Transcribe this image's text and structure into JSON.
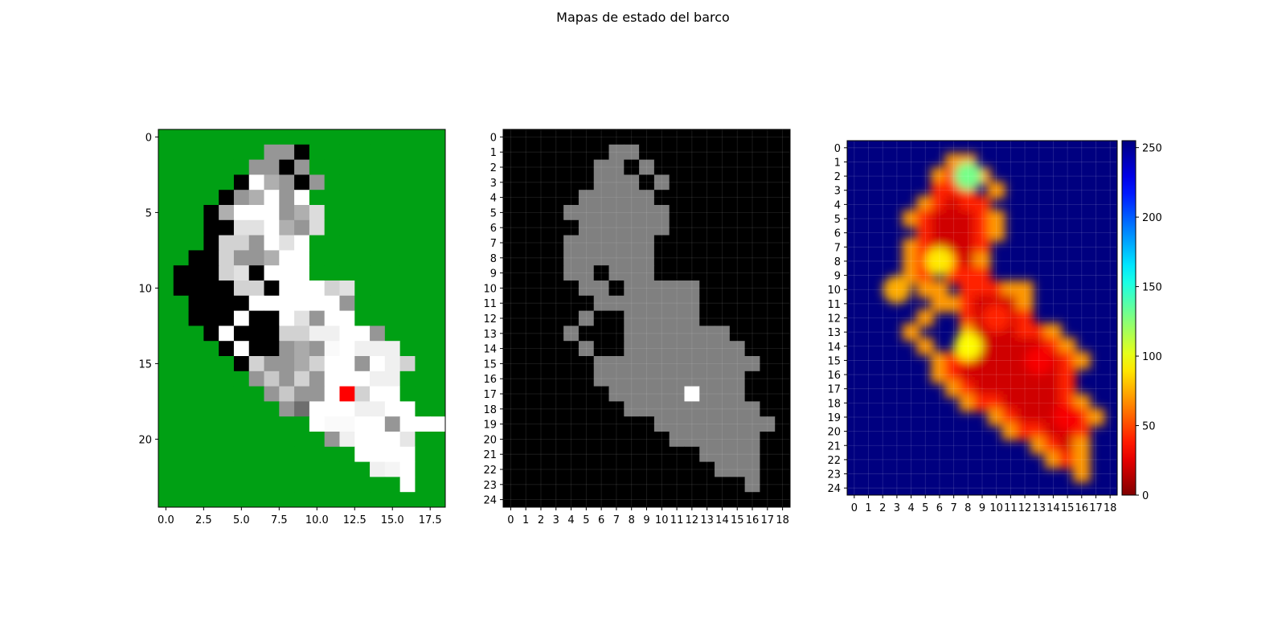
{
  "title": "Mapas de estado del barco",
  "chart_data": [
    {
      "type": "heatmap",
      "panel": "estado",
      "title": "",
      "xlabel": "",
      "ylabel": "",
      "rows": 25,
      "cols": 19,
      "xlim": [
        -0.5,
        18.5
      ],
      "ylim": [
        24.5,
        -0.5
      ],
      "x_ticks": [
        0.0,
        2.5,
        5.0,
        7.5,
        10.0,
        12.5,
        15.0,
        17.5
      ],
      "x_tick_labels": [
        "0.0",
        "2.5",
        "5.0",
        "7.5",
        "10.0",
        "12.5",
        "15.0",
        "17.5"
      ],
      "y_ticks": [
        0,
        5,
        10,
        15,
        20
      ],
      "y_tick_labels": [
        "0",
        "5",
        "10",
        "15",
        "20"
      ],
      "background_color": "#00a014",
      "highlight_color": "#ff0000",
      "highlight_cell": [
        17,
        12
      ],
      "grid_note": "cell values are gray levels 0-255; -1 means background (green)",
      "values": [
        [
          -1,
          -1,
          -1,
          -1,
          -1,
          -1,
          -1,
          -1,
          -1,
          -1,
          -1,
          -1,
          -1,
          -1,
          -1,
          -1,
          -1,
          -1,
          -1
        ],
        [
          -1,
          -1,
          -1,
          -1,
          -1,
          -1,
          -1,
          150,
          150,
          0,
          -1,
          -1,
          -1,
          -1,
          -1,
          -1,
          -1,
          -1,
          -1
        ],
        [
          -1,
          -1,
          -1,
          -1,
          -1,
          -1,
          150,
          150,
          0,
          150,
          -1,
          -1,
          -1,
          -1,
          -1,
          -1,
          -1,
          -1,
          -1
        ],
        [
          -1,
          -1,
          -1,
          -1,
          -1,
          0,
          255,
          175,
          150,
          0,
          150,
          -1,
          -1,
          -1,
          -1,
          -1,
          -1,
          -1,
          -1
        ],
        [
          -1,
          -1,
          -1,
          -1,
          0,
          150,
          175,
          255,
          150,
          255,
          -1,
          -1,
          -1,
          -1,
          -1,
          -1,
          -1,
          -1,
          -1
        ],
        [
          -1,
          -1,
          -1,
          0,
          175,
          255,
          255,
          255,
          150,
          175,
          220,
          -1,
          -1,
          -1,
          -1,
          -1,
          -1,
          -1,
          -1
        ],
        [
          -1,
          -1,
          -1,
          0,
          0,
          225,
          225,
          255,
          175,
          150,
          220,
          -1,
          -1,
          -1,
          -1,
          -1,
          -1,
          -1,
          -1
        ],
        [
          -1,
          -1,
          -1,
          0,
          210,
          210,
          150,
          255,
          225,
          255,
          -1,
          -1,
          -1,
          -1,
          -1,
          -1,
          -1,
          -1,
          -1
        ],
        [
          -1,
          -1,
          0,
          0,
          210,
          150,
          150,
          175,
          255,
          255,
          -1,
          -1,
          -1,
          -1,
          -1,
          -1,
          -1,
          -1,
          -1
        ],
        [
          -1,
          0,
          0,
          0,
          210,
          225,
          0,
          255,
          255,
          255,
          -1,
          -1,
          -1,
          -1,
          -1,
          -1,
          -1,
          -1,
          -1
        ],
        [
          -1,
          0,
          0,
          0,
          0,
          210,
          210,
          0,
          255,
          255,
          255,
          210,
          225,
          -1,
          -1,
          -1,
          -1,
          -1,
          -1
        ],
        [
          -1,
          -1,
          0,
          0,
          0,
          0,
          255,
          255,
          255,
          255,
          255,
          255,
          150,
          -1,
          -1,
          -1,
          -1,
          -1,
          -1
        ],
        [
          -1,
          -1,
          0,
          0,
          0,
          255,
          0,
          0,
          255,
          225,
          150,
          255,
          255,
          -1,
          -1,
          -1,
          -1,
          -1,
          -1
        ],
        [
          -1,
          -1,
          -1,
          0,
          255,
          0,
          0,
          0,
          210,
          210,
          240,
          240,
          255,
          255,
          150,
          -1,
          -1,
          -1,
          -1
        ],
        [
          -1,
          -1,
          -1,
          -1,
          0,
          255,
          0,
          0,
          150,
          170,
          150,
          250,
          255,
          240,
          240,
          240,
          -1,
          -1,
          -1
        ],
        [
          -1,
          -1,
          -1,
          -1,
          -1,
          0,
          210,
          150,
          150,
          170,
          210,
          255,
          255,
          150,
          255,
          240,
          210,
          -1,
          -1
        ],
        [
          -1,
          -1,
          -1,
          -1,
          -1,
          -1,
          150,
          200,
          150,
          210,
          150,
          255,
          255,
          255,
          240,
          240,
          -1,
          -1,
          -1
        ],
        [
          -1,
          -1,
          -1,
          -1,
          -1,
          -1,
          -1,
          150,
          200,
          150,
          150,
          255,
          -2,
          210,
          255,
          255,
          -1,
          -1,
          -1
        ],
        [
          -1,
          -1,
          -1,
          -1,
          -1,
          -1,
          -1,
          -1,
          150,
          110,
          255,
          255,
          255,
          240,
          240,
          255,
          255,
          -1,
          -1
        ],
        [
          -1,
          -1,
          -1,
          -1,
          -1,
          -1,
          -1,
          -1,
          -1,
          -1,
          255,
          250,
          250,
          255,
          255,
          150,
          255,
          255,
          255
        ],
        [
          -1,
          -1,
          -1,
          -1,
          -1,
          -1,
          -1,
          -1,
          -1,
          -1,
          -1,
          150,
          240,
          255,
          255,
          255,
          230,
          -1,
          -1
        ],
        [
          -1,
          -1,
          -1,
          -1,
          -1,
          -1,
          -1,
          -1,
          -1,
          -1,
          -1,
          -1,
          -1,
          255,
          255,
          255,
          255,
          -1,
          -1
        ],
        [
          -1,
          -1,
          -1,
          -1,
          -1,
          -1,
          -1,
          -1,
          -1,
          -1,
          -1,
          -1,
          -1,
          -1,
          240,
          245,
          255,
          -1,
          -1
        ],
        [
          -1,
          -1,
          -1,
          -1,
          -1,
          -1,
          -1,
          -1,
          -1,
          -1,
          -1,
          -1,
          -1,
          -1,
          -1,
          -1,
          255,
          -1,
          -1
        ],
        [
          -1,
          -1,
          -1,
          -1,
          -1,
          -1,
          -1,
          -1,
          -1,
          -1,
          -1,
          -1,
          -1,
          -1,
          -1,
          -1,
          -1,
          -1,
          -1
        ]
      ]
    },
    {
      "type": "heatmap",
      "panel": "mascara",
      "title": "",
      "xlabel": "",
      "ylabel": "",
      "rows": 25,
      "cols": 19,
      "grid": true,
      "x_ticks": [
        0,
        1,
        2,
        3,
        4,
        5,
        6,
        7,
        8,
        9,
        10,
        11,
        12,
        13,
        14,
        15,
        16,
        17,
        18
      ],
      "x_tick_labels": [
        "0",
        "1",
        "2",
        "3",
        "4",
        "5",
        "6",
        "7",
        "8",
        "9",
        "10",
        "11",
        "12",
        "13",
        "14",
        "15",
        "16",
        "17",
        "18"
      ],
      "y_ticks": [
        0,
        1,
        2,
        3,
        4,
        5,
        6,
        7,
        8,
        9,
        10,
        11,
        12,
        13,
        14,
        15,
        16,
        17,
        18,
        19,
        20,
        21,
        22,
        23,
        24
      ],
      "y_tick_labels": [
        "0",
        "1",
        "2",
        "3",
        "4",
        "5",
        "6",
        "7",
        "8",
        "9",
        "10",
        "11",
        "12",
        "13",
        "14",
        "15",
        "16",
        "17",
        "18",
        "19",
        "20",
        "21",
        "22",
        "23",
        "24"
      ],
      "palette": [
        "#000000",
        "#808080",
        "#ffffff"
      ],
      "grid_note": "0 = black, 1 = gray, 2 = white",
      "values": [
        [
          0,
          0,
          0,
          0,
          0,
          0,
          0,
          0,
          0,
          0,
          0,
          0,
          0,
          0,
          0,
          0,
          0,
          0,
          0
        ],
        [
          0,
          0,
          0,
          0,
          0,
          0,
          0,
          1,
          1,
          0,
          0,
          0,
          0,
          0,
          0,
          0,
          0,
          0,
          0
        ],
        [
          0,
          0,
          0,
          0,
          0,
          0,
          1,
          1,
          0,
          1,
          0,
          0,
          0,
          0,
          0,
          0,
          0,
          0,
          0
        ],
        [
          0,
          0,
          0,
          0,
          0,
          0,
          1,
          1,
          1,
          0,
          1,
          0,
          0,
          0,
          0,
          0,
          0,
          0,
          0
        ],
        [
          0,
          0,
          0,
          0,
          0,
          1,
          1,
          1,
          1,
          1,
          0,
          0,
          0,
          0,
          0,
          0,
          0,
          0,
          0
        ],
        [
          0,
          0,
          0,
          0,
          1,
          1,
          1,
          1,
          1,
          1,
          1,
          0,
          0,
          0,
          0,
          0,
          0,
          0,
          0
        ],
        [
          0,
          0,
          0,
          0,
          0,
          1,
          1,
          1,
          1,
          1,
          1,
          0,
          0,
          0,
          0,
          0,
          0,
          0,
          0
        ],
        [
          0,
          0,
          0,
          0,
          1,
          1,
          1,
          1,
          1,
          1,
          0,
          0,
          0,
          0,
          0,
          0,
          0,
          0,
          0
        ],
        [
          0,
          0,
          0,
          0,
          1,
          1,
          1,
          1,
          1,
          1,
          0,
          0,
          0,
          0,
          0,
          0,
          0,
          0,
          0
        ],
        [
          0,
          0,
          0,
          0,
          1,
          1,
          0,
          1,
          1,
          1,
          0,
          0,
          0,
          0,
          0,
          0,
          0,
          0,
          0
        ],
        [
          0,
          0,
          0,
          0,
          0,
          1,
          1,
          0,
          1,
          1,
          1,
          1,
          1,
          0,
          0,
          0,
          0,
          0,
          0
        ],
        [
          0,
          0,
          0,
          0,
          0,
          0,
          1,
          1,
          1,
          1,
          1,
          1,
          1,
          0,
          0,
          0,
          0,
          0,
          0
        ],
        [
          0,
          0,
          0,
          0,
          0,
          1,
          0,
          0,
          1,
          1,
          1,
          1,
          1,
          0,
          0,
          0,
          0,
          0,
          0
        ],
        [
          0,
          0,
          0,
          0,
          1,
          0,
          0,
          0,
          1,
          1,
          1,
          1,
          1,
          1,
          1,
          0,
          0,
          0,
          0
        ],
        [
          0,
          0,
          0,
          0,
          0,
          1,
          0,
          0,
          1,
          1,
          1,
          1,
          1,
          1,
          1,
          1,
          0,
          0,
          0
        ],
        [
          0,
          0,
          0,
          0,
          0,
          0,
          1,
          1,
          1,
          1,
          1,
          1,
          1,
          1,
          1,
          1,
          1,
          0,
          0
        ],
        [
          0,
          0,
          0,
          0,
          0,
          0,
          1,
          1,
          1,
          1,
          1,
          1,
          1,
          1,
          1,
          1,
          0,
          0,
          0
        ],
        [
          0,
          0,
          0,
          0,
          0,
          0,
          0,
          1,
          1,
          1,
          1,
          1,
          2,
          1,
          1,
          1,
          0,
          0,
          0
        ],
        [
          0,
          0,
          0,
          0,
          0,
          0,
          0,
          0,
          1,
          1,
          1,
          1,
          1,
          1,
          1,
          1,
          1,
          0,
          0
        ],
        [
          0,
          0,
          0,
          0,
          0,
          0,
          0,
          0,
          0,
          0,
          1,
          1,
          1,
          1,
          1,
          1,
          1,
          1,
          0
        ],
        [
          0,
          0,
          0,
          0,
          0,
          0,
          0,
          0,
          0,
          0,
          0,
          1,
          1,
          1,
          1,
          1,
          1,
          0,
          0
        ],
        [
          0,
          0,
          0,
          0,
          0,
          0,
          0,
          0,
          0,
          0,
          0,
          0,
          0,
          1,
          1,
          1,
          1,
          0,
          0
        ],
        [
          0,
          0,
          0,
          0,
          0,
          0,
          0,
          0,
          0,
          0,
          0,
          0,
          0,
          0,
          1,
          1,
          1,
          0,
          0
        ],
        [
          0,
          0,
          0,
          0,
          0,
          0,
          0,
          0,
          0,
          0,
          0,
          0,
          0,
          0,
          0,
          0,
          1,
          0,
          0
        ],
        [
          0,
          0,
          0,
          0,
          0,
          0,
          0,
          0,
          0,
          0,
          0,
          0,
          0,
          0,
          0,
          0,
          0,
          0,
          0
        ]
      ]
    },
    {
      "type": "heatmap",
      "panel": "distancia",
      "title": "",
      "xlabel": "",
      "ylabel": "",
      "rows": 25,
      "cols": 19,
      "colormap": "jet_r",
      "vmin": 0,
      "vmax": 255,
      "smoothing": "interpolated",
      "grid": true,
      "x_ticks": [
        0,
        1,
        2,
        3,
        4,
        5,
        6,
        7,
        8,
        9,
        10,
        11,
        12,
        13,
        14,
        15,
        16,
        17,
        18
      ],
      "x_tick_labels": [
        "0",
        "1",
        "2",
        "3",
        "4",
        "5",
        "6",
        "7",
        "8",
        "9",
        "10",
        "11",
        "12",
        "13",
        "14",
        "15",
        "16",
        "17",
        "18"
      ],
      "y_ticks": [
        0,
        1,
        2,
        3,
        4,
        5,
        6,
        7,
        8,
        9,
        10,
        11,
        12,
        13,
        14,
        15,
        16,
        17,
        18,
        19,
        20,
        21,
        22,
        23,
        24
      ],
      "y_tick_labels": [
        "0",
        "1",
        "2",
        "3",
        "4",
        "5",
        "6",
        "7",
        "8",
        "9",
        "10",
        "11",
        "12",
        "13",
        "14",
        "15",
        "16",
        "17",
        "18",
        "19",
        "20",
        "21",
        "22",
        "23",
        "24"
      ],
      "colorbar_ticks": [
        0,
        50,
        100,
        150,
        200,
        250
      ],
      "colorbar_tick_labels": [
        "0",
        "50",
        "100",
        "150",
        "200",
        "250"
      ],
      "shape_from_panel": "mascara",
      "hotspots": [
        {
          "row": 2,
          "col": 8,
          "value": 130
        },
        {
          "row": 8,
          "col": 6,
          "value": 90
        },
        {
          "row": 10,
          "col": 3,
          "value": 75
        },
        {
          "row": 14,
          "col": 8,
          "value": 95
        },
        {
          "row": 12,
          "col": 10,
          "value": 40
        },
        {
          "row": 15,
          "col": 13,
          "value": 30
        },
        {
          "row": 19,
          "col": 15,
          "value": 30
        }
      ]
    }
  ]
}
